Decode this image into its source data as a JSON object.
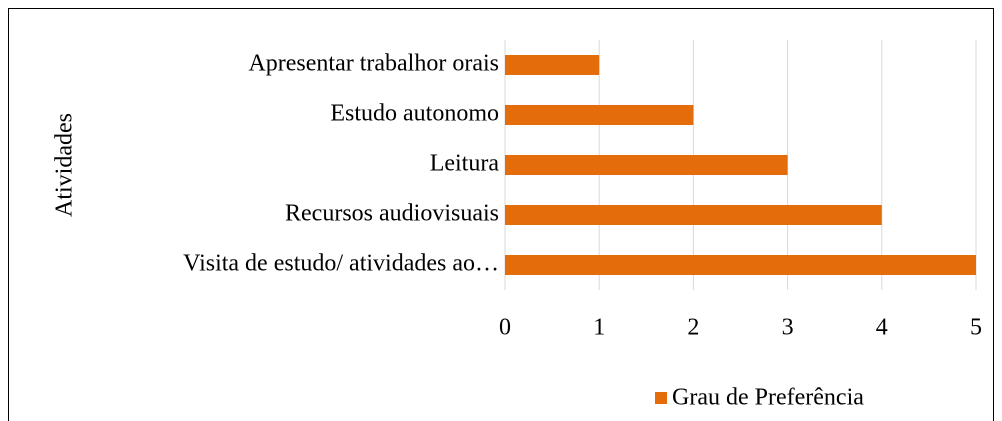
{
  "chart_data": {
    "type": "bar",
    "orientation": "horizontal",
    "categories": [
      "Apresentar trabalhor orais",
      "Estudo autonomo",
      "Leitura",
      "Recursos audiovisuais",
      "Visita de estudo/ atividades ao…"
    ],
    "series": [
      {
        "name": "Grau de Preferência",
        "color": "#e46c0a",
        "values": [
          1,
          2,
          3,
          4,
          5
        ]
      }
    ],
    "ylabel": "Atividades",
    "xlim": [
      0,
      5
    ],
    "xticks": [
      0,
      1,
      2,
      3,
      4,
      5
    ],
    "grid": true,
    "legend": "bottom"
  }
}
